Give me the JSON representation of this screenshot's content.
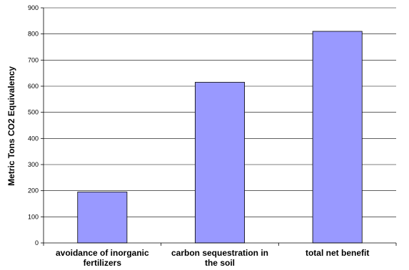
{
  "chart_data": {
    "type": "bar",
    "title": "",
    "xlabel": "",
    "ylabel": "Metric Tons CO2 Equivalency",
    "ylim": [
      0,
      900
    ],
    "yticks": [
      0,
      100,
      200,
      300,
      400,
      500,
      600,
      700,
      800,
      900
    ],
    "grid": true,
    "bar_color": "#9999ff",
    "categories": [
      [
        "avoidance of inorganic",
        "fertilizers"
      ],
      [
        "carbon sequestration in",
        "the soil"
      ],
      [
        "total net benefit"
      ]
    ],
    "values": [
      195,
      615,
      810
    ]
  }
}
